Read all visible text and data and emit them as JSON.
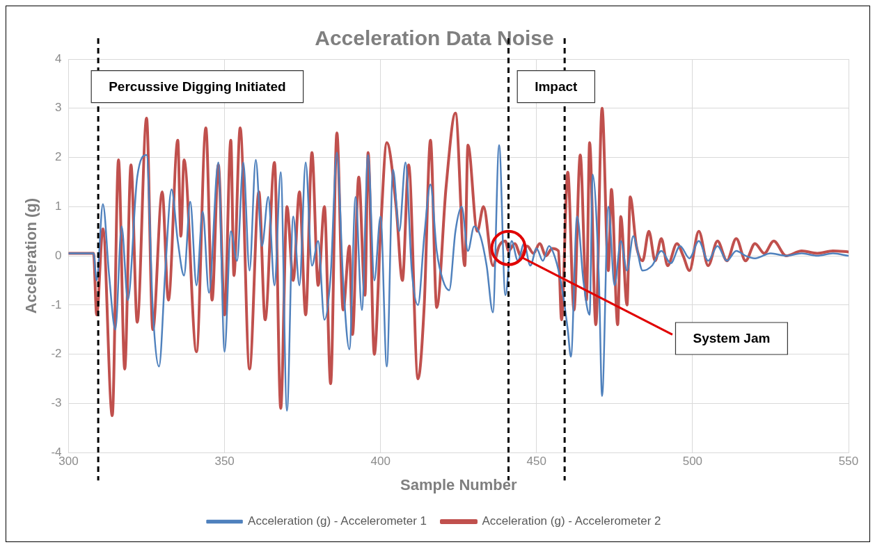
{
  "chart_data": {
    "type": "line",
    "title": "Acceleration Data Noise",
    "xlabel": "Sample Number",
    "ylabel": "Acceleration (g)",
    "xlim": [
      300,
      550
    ],
    "xticks": [
      300,
      350,
      400,
      450,
      500,
      550
    ],
    "ylim": [
      -4,
      4
    ],
    "yticks": [
      -4,
      -3,
      -2,
      -1,
      0,
      1,
      2,
      3,
      4
    ],
    "grid": true,
    "legend": "bottom",
    "marker": "none",
    "line_style": "solid",
    "series": [
      {
        "name": "Acceleration (g) - Accelerometer 1",
        "color": "#4f81bd",
        "x": [
          300,
          308,
          309,
          311,
          313,
          315,
          317,
          319,
          322,
          325,
          327,
          329,
          331,
          333,
          335,
          337,
          339,
          341,
          343,
          345,
          348,
          350,
          352,
          354,
          356,
          358,
          360,
          362,
          364,
          366,
          368,
          370,
          372,
          374,
          376,
          378,
          380,
          382,
          384,
          386,
          388,
          390,
          392,
          394,
          396,
          398,
          400,
          402,
          404,
          406,
          408,
          410,
          412,
          414,
          416,
          418,
          420,
          422,
          424,
          426,
          428,
          430,
          432,
          434,
          436,
          438,
          440,
          442,
          444,
          446,
          448,
          450,
          452,
          454,
          456,
          458,
          460,
          461,
          463,
          465,
          467,
          468,
          470,
          471,
          473,
          475,
          477,
          479,
          481,
          484,
          487,
          490,
          493,
          496,
          499,
          502,
          505,
          508,
          511,
          514,
          517,
          520,
          525,
          530,
          535,
          540,
          545,
          550
        ],
        "values": [
          0.05,
          0.05,
          -0.5,
          1.05,
          -0.4,
          -1.5,
          0.6,
          -0.9,
          1.6,
          2.05,
          -1.1,
          -2.25,
          -0.3,
          1.35,
          0.3,
          -0.4,
          1.1,
          -0.6,
          0.9,
          -0.75,
          1.9,
          -1.95,
          0.5,
          -0.1,
          1.9,
          -0.3,
          1.95,
          0.2,
          1.2,
          -0.6,
          1.7,
          -3.15,
          0.8,
          -0.6,
          1.9,
          -0.2,
          0.3,
          -1.3,
          -0.4,
          2.1,
          -0.5,
          -1.9,
          1.2,
          -1.1,
          2.05,
          -0.5,
          0.8,
          -2.25,
          1.75,
          0.5,
          1.9,
          -0.3,
          -1.0,
          0.4,
          1.45,
          0.1,
          -0.5,
          -0.7,
          0.5,
          1.0,
          0.1,
          0.6,
          0.4,
          -0.2,
          -1.15,
          2.25,
          -0.8,
          0.3,
          -0.1,
          0.25,
          -0.2,
          0.15,
          -0.1,
          0.2,
          -0.05,
          -0.6,
          -1.5,
          -2.05,
          0.8,
          -0.5,
          -1.2,
          1.65,
          -0.5,
          -2.85,
          1.0,
          -0.6,
          0.3,
          -0.3,
          0.4,
          -0.3,
          -0.2,
          0.1,
          -0.15,
          0.2,
          -0.05,
          0.3,
          -0.1,
          0.2,
          -0.1,
          0.1,
          0.0,
          -0.05,
          0.05,
          0.0,
          0.05,
          0.0,
          0.05,
          0.0
        ]
      },
      {
        "name": "Acceleration (g) - Accelerometer 2",
        "color": "#c0504d",
        "x": [
          300,
          308,
          309,
          311,
          314,
          316,
          318,
          320,
          322,
          325,
          327,
          330,
          332,
          335,
          336,
          337,
          341,
          344,
          346,
          348,
          350,
          352,
          353,
          355,
          358,
          361,
          363,
          366,
          368,
          370,
          372,
          374,
          376,
          378,
          380,
          382,
          384,
          386,
          388,
          390,
          391,
          393,
          395,
          396,
          398,
          400,
          402,
          405,
          407,
          409,
          412,
          414,
          416,
          418,
          421,
          424,
          427,
          428,
          431,
          433,
          436,
          438,
          440,
          441,
          443,
          445,
          447,
          449,
          451,
          453,
          455,
          457,
          458,
          460,
          462,
          464,
          466,
          467,
          469,
          471,
          473,
          474,
          476,
          477,
          479,
          480,
          482,
          484,
          486,
          488,
          490,
          492,
          495,
          497,
          499,
          502,
          505,
          508,
          511,
          514,
          517,
          520,
          523,
          526,
          530,
          535,
          540,
          545,
          550
        ],
        "values": [
          0.05,
          0.05,
          -1.2,
          0.55,
          -3.25,
          1.95,
          -2.3,
          1.85,
          -1.35,
          2.8,
          -1.5,
          1.3,
          -0.9,
          2.35,
          0.4,
          1.95,
          -1.95,
          2.6,
          -0.9,
          1.85,
          -1.2,
          2.35,
          -0.4,
          2.6,
          -2.3,
          1.3,
          -1.3,
          1.9,
          -3.1,
          1.0,
          -0.5,
          1.3,
          -1.2,
          2.1,
          -0.6,
          1.0,
          -2.6,
          2.5,
          -1.1,
          0.2,
          -1.6,
          1.6,
          -0.8,
          2.1,
          -2.0,
          0.5,
          2.3,
          1.0,
          -0.5,
          1.85,
          -2.5,
          -1.0,
          2.35,
          -1.05,
          1.4,
          2.9,
          -0.2,
          2.25,
          0.5,
          1.0,
          -0.2,
          0.2,
          0.3,
          0.1,
          0.25,
          0.0,
          0.2,
          0.05,
          0.25,
          0.0,
          0.15,
          0.1,
          -1.3,
          1.7,
          -1.1,
          2.05,
          -0.9,
          2.3,
          -1.4,
          3.0,
          -0.3,
          1.35,
          -1.4,
          0.8,
          -1.0,
          1.2,
          0.2,
          -0.1,
          0.5,
          -0.1,
          0.35,
          -0.2,
          0.25,
          0.0,
          -0.3,
          0.5,
          -0.2,
          0.3,
          -0.1,
          0.35,
          -0.1,
          0.25,
          0.05,
          0.3,
          0.0,
          0.1,
          0.05,
          0.1,
          0.08
        ]
      }
    ],
    "ref_lines": [
      {
        "axis": "x",
        "value": 309.5,
        "color": "#000000",
        "line_style": "dashed"
      },
      {
        "axis": "x",
        "value": 441,
        "color": "#000000",
        "line_style": "dashed"
      },
      {
        "axis": "x",
        "value": 459,
        "color": "#000000",
        "line_style": "dashed"
      }
    ],
    "annotations": [
      "Percussive Digging Initiated",
      "Impact",
      "System Jam"
    ]
  }
}
